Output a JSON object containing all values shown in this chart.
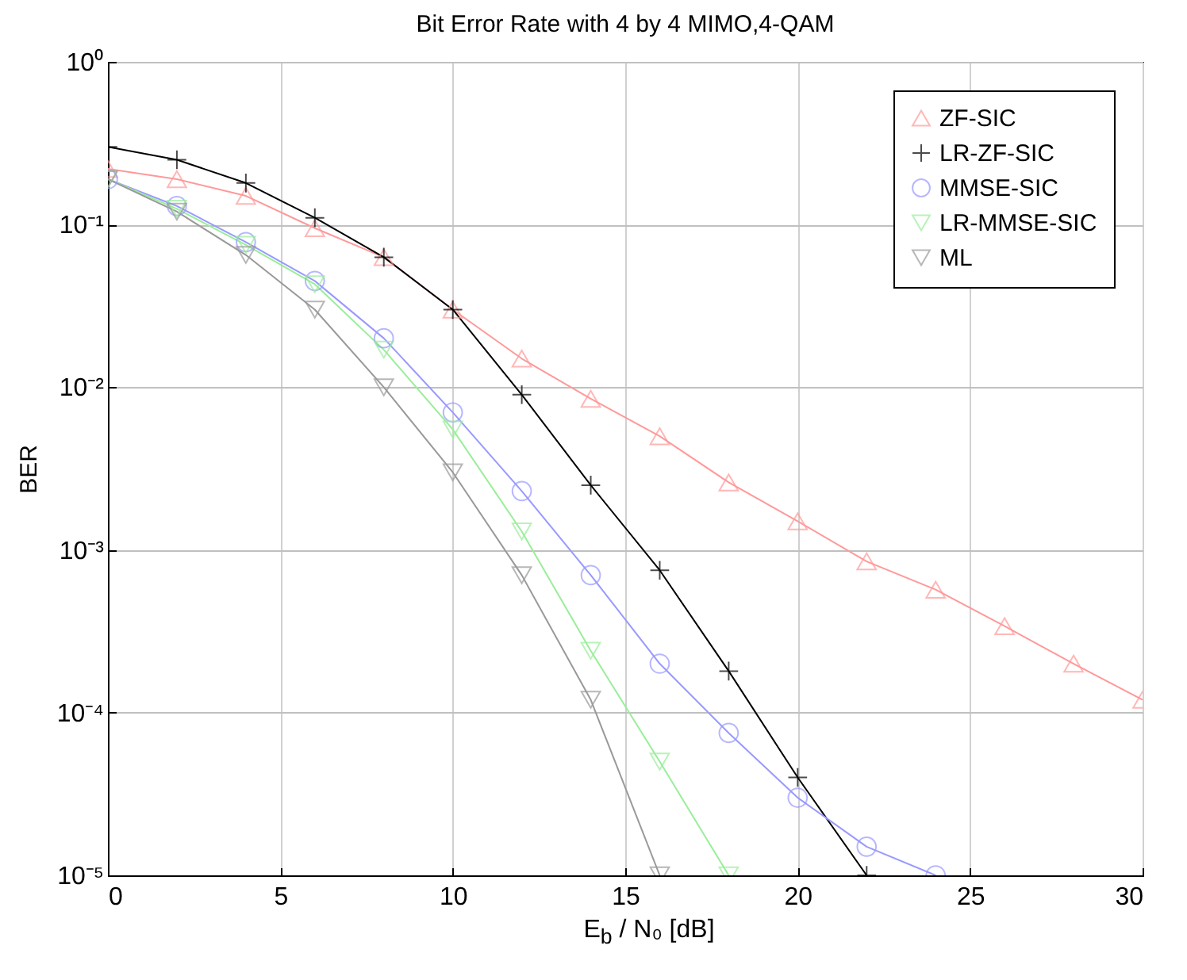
{
  "chart_data": {
    "type": "line",
    "title": "Bit Error Rate with 4 by 4 MIMO,4-QAM",
    "xlabel": "E$_{b}$ / N₀  [dB]",
    "ylabel": "BER",
    "log": "y",
    "grid": true,
    "legend": "top right",
    "line_style": "solid",
    "xlim": [
      0,
      30
    ],
    "xticks": [
      0,
      5,
      10,
      15,
      20,
      25,
      30
    ],
    "ylim": [
      1e-05,
      1
    ],
    "yticks": [
      {
        "value": 1e-05,
        "label": "10⁻⁵"
      },
      {
        "value": 0.0001,
        "label": "10⁻⁴"
      },
      {
        "value": 0.001,
        "label": "10⁻³"
      },
      {
        "value": 0.01,
        "label": "10⁻²"
      },
      {
        "value": 0.1,
        "label": "10⁻¹"
      },
      {
        "value": 1,
        "label": "10⁰"
      }
    ],
    "series": [
      {
        "name": "ZF-SIC",
        "color": "#ff9999",
        "marker": "triangle",
        "x": [
          0,
          2,
          4,
          6,
          8,
          10,
          12,
          14,
          16,
          18,
          20,
          22,
          24,
          26,
          28,
          30
        ],
        "values": [
          0.22,
          0.19,
          0.15,
          0.095,
          0.063,
          0.03,
          0.015,
          0.0085,
          0.005,
          0.0026,
          0.0015,
          0.00085,
          0.00057,
          0.00034,
          0.0002,
          0.00012
        ]
      },
      {
        "name": "LR-ZF-SIC",
        "color": "#000000",
        "marker": "cross",
        "x": [
          0,
          2,
          4,
          6,
          8,
          10,
          12,
          14,
          16,
          18,
          20,
          22
        ],
        "values": [
          0.3,
          0.25,
          0.18,
          0.11,
          0.063,
          0.03,
          0.009,
          0.0025,
          0.00075,
          0.00018,
          4e-05,
          1e-05
        ]
      },
      {
        "name": "MMSE-SIC",
        "color": "#9999ff",
        "marker": "circle",
        "x": [
          0,
          2,
          4,
          6,
          8,
          10,
          12,
          14,
          16,
          18,
          20,
          22,
          24
        ],
        "values": [
          0.19,
          0.13,
          0.078,
          0.045,
          0.02,
          0.007,
          0.0023,
          0.0007,
          0.0002,
          7.5e-05,
          3e-05,
          1.5e-05,
          1e-05
        ]
      },
      {
        "name": "LR-MMSE-SIC",
        "color": "#99ee99",
        "marker": "triangle-down",
        "x": [
          0,
          2,
          4,
          6,
          8,
          10,
          12,
          14,
          16,
          18
        ],
        "values": [
          0.19,
          0.125,
          0.075,
          0.043,
          0.017,
          0.0055,
          0.0013,
          0.00024,
          5e-05,
          1e-05
        ]
      },
      {
        "name": "ML",
        "color": "#999999",
        "marker": "triangle-down",
        "x": [
          0,
          2,
          4,
          6,
          8,
          10,
          12,
          14,
          16
        ],
        "values": [
          0.19,
          0.12,
          0.065,
          0.03,
          0.01,
          0.003,
          0.0007,
          0.00012,
          1e-05
        ]
      }
    ]
  }
}
